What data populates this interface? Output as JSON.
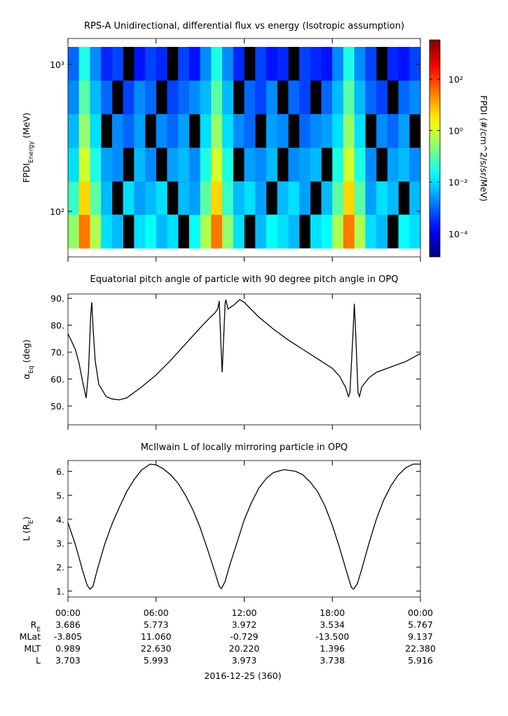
{
  "chart_data": [
    {
      "type": "heatmap",
      "title": "RPS-A Unidirectional, differential flux vs energy (Isotropic assumption)",
      "ylabel_parts": [
        {
          "text": "FPDI"
        },
        {
          "text": "Energy",
          "sub": true
        },
        {
          "text": " (MeV)"
        }
      ],
      "x_edges": [
        0,
        0.75,
        1.5,
        2.25,
        3,
        3.75,
        4.5,
        5.25,
        6,
        6.75,
        7.5,
        8.25,
        9,
        9.75,
        10.5,
        11.25,
        12,
        12.75,
        13.5,
        14.25,
        15,
        15.75,
        16.5,
        17.25,
        18,
        18.75,
        19.5,
        20.25,
        21,
        21.75,
        22.5,
        23.25,
        24
      ],
      "y_edges": [
        56,
        95,
        160,
        271,
        459,
        777,
        1315
      ],
      "z": [
        [
          0.3,
          30,
          0.5,
          0.01,
          0.005,
          null,
          0.01,
          0.02,
          0.005,
          0.01,
          null,
          0.02,
          0.5,
          30,
          0.3,
          0.01,
          null,
          0.005,
          0.02,
          0.01,
          0.005,
          null,
          0.01,
          0.02,
          0.5,
          30,
          0.5,
          0.01,
          0.005,
          null,
          0.02,
          0.01
        ],
        [
          0.05,
          5,
          0.1,
          0.005,
          null,
          0.01,
          0.003,
          0.005,
          0.01,
          null,
          0.005,
          0.003,
          0.1,
          5,
          0.05,
          0.005,
          0.01,
          0.003,
          null,
          0.005,
          0.01,
          0.003,
          null,
          0.005,
          0.1,
          5,
          0.1,
          0.003,
          0.01,
          0.005,
          null,
          0.005
        ],
        [
          0.01,
          1,
          0.03,
          0.003,
          0.002,
          null,
          0.005,
          0.002,
          null,
          0.003,
          0.005,
          0.002,
          0.03,
          1,
          0.03,
          null,
          0.003,
          0.002,
          0.005,
          null,
          0.002,
          0.003,
          0.005,
          null,
          0.03,
          1,
          0.03,
          0.002,
          null,
          0.003,
          0.005,
          0.002
        ],
        [
          0.005,
          0.3,
          0.01,
          null,
          0.002,
          0.001,
          0.003,
          null,
          0.002,
          0.001,
          0.003,
          null,
          0.01,
          0.3,
          0.01,
          0.002,
          0.001,
          null,
          0.003,
          0.002,
          null,
          0.001,
          0.002,
          0.003,
          0.01,
          0.3,
          0.01,
          null,
          0.002,
          0.001,
          0.003,
          null
        ],
        [
          0.002,
          0.1,
          0.005,
          0.001,
          null,
          0.0005,
          0.002,
          0.001,
          null,
          0.0005,
          0.001,
          0.002,
          0.005,
          0.1,
          0.005,
          null,
          0.001,
          0.0005,
          0.002,
          null,
          0.001,
          0.0005,
          null,
          0.001,
          0.005,
          0.1,
          0.005,
          0.001,
          0.0005,
          null,
          0.001,
          0.002
        ],
        [
          0.001,
          0.03,
          0.002,
          0.0003,
          0.0005,
          null,
          0.0002,
          0.0005,
          0.0003,
          null,
          0.0005,
          0.0002,
          0.002,
          0.03,
          0.002,
          0.0003,
          null,
          0.0005,
          0.0002,
          0.0003,
          null,
          0.0005,
          0.0003,
          0.0002,
          0.002,
          0.03,
          0.002,
          0.0005,
          null,
          0.0003,
          0.0002,
          0.0005
        ]
      ],
      "xlim": [
        0,
        24
      ],
      "xticks": [
        0,
        6,
        12,
        18,
        24
      ],
      "ylim": [
        49,
        1500
      ],
      "yscale": "log",
      "yticks": [
        {
          "value": 100,
          "label": "10²"
        },
        {
          "value": 1000,
          "label": "10³"
        }
      ],
      "colorbar": {
        "label": "FPDI (#/cm^2/s/sr/MeV)",
        "clim": [
          1.26e-05,
          3300
        ],
        "colormap": "jet",
        "null_color": "#000000",
        "ticks": [
          {
            "value": 100,
            "label": "10²"
          },
          {
            "value": 1,
            "label": "10⁰"
          },
          {
            "value": 0.01,
            "label": "10⁻²"
          },
          {
            "value": 0.0001,
            "label": "10⁻⁴"
          }
        ]
      }
    },
    {
      "type": "line",
      "title": "Equatorial pitch angle of particle with 90 degree pitch angle in OPQ",
      "ylabel_parts": [
        {
          "text": "α"
        },
        {
          "text": "Eq",
          "sub": true
        },
        {
          "text": " (deg)"
        }
      ],
      "color": "#000000",
      "x": [
        0,
        0.25,
        0.5,
        0.75,
        1.0,
        1.24,
        1.4,
        1.55,
        1.62,
        1.7,
        1.85,
        2.1,
        2.6,
        3.0,
        3.5,
        4.0,
        5.0,
        6.0,
        7.0,
        8.0,
        9.0,
        9.7,
        10.0,
        10.2,
        10.3,
        10.4,
        10.5,
        10.6,
        10.7,
        10.75,
        10.9,
        11.3,
        11.7,
        12.0,
        13.0,
        14.0,
        15.0,
        16.0,
        17.0,
        18.0,
        18.5,
        18.9,
        19.1,
        19.2,
        19.4,
        19.5,
        19.6,
        19.75,
        19.85,
        20.0,
        20.5,
        21.0,
        22.0,
        23.0,
        24.0
      ],
      "y": [
        76.8,
        74,
        71,
        66,
        59,
        53,
        63,
        84,
        88.5,
        80,
        67,
        58,
        53.5,
        52.6,
        52.3,
        53,
        57,
        61.5,
        67,
        73,
        79,
        83,
        84.5,
        86,
        89,
        75,
        62.5,
        75,
        88,
        89.5,
        86,
        87.5,
        89.5,
        88.5,
        83,
        78.5,
        74.5,
        71,
        67.5,
        64,
        61,
        57,
        53.5,
        55,
        76,
        88,
        76,
        55,
        53.5,
        57,
        60.5,
        62.5,
        64.5,
        66.5,
        69.5
      ],
      "xlim": [
        0,
        24
      ],
      "xticks": [
        0,
        6,
        12,
        18,
        24
      ],
      "ylim": [
        43,
        91.6
      ],
      "yticks": [
        {
          "value": 50,
          "label": "50."
        },
        {
          "value": 60,
          "label": "60."
        },
        {
          "value": 70,
          "label": "70."
        },
        {
          "value": 80,
          "label": "80."
        },
        {
          "value": 90,
          "label": "90."
        }
      ]
    },
    {
      "type": "line",
      "title": "McIlwain L of locally mirroring particle in OPQ",
      "ylabel_parts": [
        {
          "text": "L (R"
        },
        {
          "text": "E",
          "sub": true
        },
        {
          "text": ")"
        }
      ],
      "color": "#000000",
      "x": [
        0,
        0.5,
        1.0,
        1.3,
        1.5,
        1.7,
        2.0,
        2.5,
        3.0,
        3.5,
        4.0,
        4.5,
        5.0,
        5.6,
        6.0,
        6.5,
        7.0,
        7.5,
        8.0,
        8.5,
        9.0,
        9.5,
        10.0,
        10.3,
        10.45,
        10.7,
        11.0,
        11.5,
        12.0,
        12.5,
        13.0,
        13.5,
        14.0,
        14.7,
        15.5,
        16.0,
        16.5,
        17.0,
        17.5,
        18.0,
        18.5,
        19.0,
        19.3,
        19.45,
        19.7,
        20.0,
        20.5,
        21.0,
        21.5,
        22.0,
        22.5,
        23.0,
        23.5,
        24.0
      ],
      "y": [
        3.85,
        2.95,
        1.85,
        1.25,
        1.08,
        1.2,
        1.9,
        2.95,
        3.8,
        4.5,
        5.15,
        5.65,
        6.05,
        6.3,
        6.27,
        6.1,
        5.85,
        5.5,
        5.0,
        4.4,
        3.65,
        2.75,
        1.8,
        1.2,
        1.1,
        1.4,
        2.05,
        3.0,
        3.97,
        4.7,
        5.3,
        5.7,
        5.95,
        6.07,
        6.0,
        5.85,
        5.55,
        5.15,
        4.55,
        3.75,
        2.8,
        1.75,
        1.15,
        1.08,
        1.3,
        1.9,
        3.0,
        4.0,
        4.8,
        5.4,
        5.85,
        6.15,
        6.3,
        6.3
      ],
      "xlim": [
        0,
        24
      ],
      "xticks": [
        {
          "value": 0,
          "label": "00:00"
        },
        {
          "value": 6,
          "label": "06:00"
        },
        {
          "value": 12,
          "label": "12:00"
        },
        {
          "value": 18,
          "label": "18:00"
        },
        {
          "value": 24,
          "label": "00:00"
        }
      ],
      "ylim": [
        0.75,
        6.45
      ],
      "yticks": [
        {
          "value": 1,
          "label": "1."
        },
        {
          "value": 2,
          "label": "2."
        },
        {
          "value": 3,
          "label": "3."
        },
        {
          "value": 4,
          "label": "4."
        },
        {
          "value": 5,
          "label": "5."
        },
        {
          "value": 6,
          "label": "6."
        }
      ]
    }
  ],
  "ephemeris": {
    "rows": [
      {
        "label": "R",
        "sub": "E",
        "values": [
          "3.686",
          "5.773",
          "3.972",
          "3.534",
          "5.767"
        ]
      },
      {
        "label": "MLat",
        "values": [
          "-3.805",
          "11.060",
          "-0.729",
          "-13.500",
          "9.137"
        ]
      },
      {
        "label": "MLT",
        "values": [
          "0.989",
          "22.630",
          "20.220",
          "1.396",
          "22.380"
        ]
      },
      {
        "label": "L",
        "values": [
          "3.703",
          "5.993",
          "3.973",
          "3.738",
          "5.916"
        ]
      }
    ],
    "date": "2016-12-25 (360)"
  }
}
